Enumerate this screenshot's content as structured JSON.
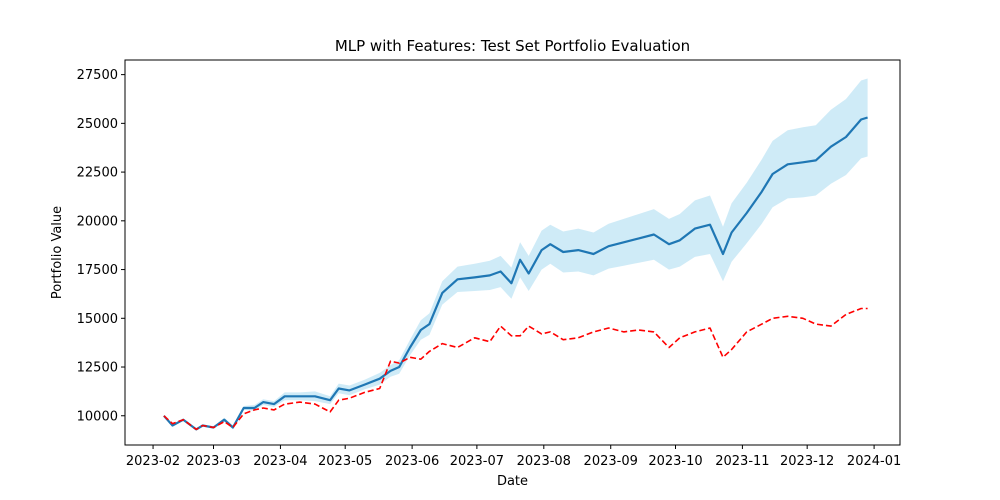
{
  "chart_data": {
    "type": "line",
    "title": "MLP with Features: Test Set Portfolio Evaluation",
    "xlabel": "Date",
    "ylabel": "Portfolio Value",
    "x_ticks": [
      "2023-02",
      "2023-03",
      "2023-04",
      "2023-05",
      "2023-06",
      "2023-07",
      "2023-08",
      "2023-09",
      "2023-10",
      "2023-11",
      "2023-12",
      "2024-01"
    ],
    "x_tick_dates": [
      "2023-02-01",
      "2023-03-01",
      "2023-04-01",
      "2023-05-01",
      "2023-06-01",
      "2023-07-01",
      "2023-08-01",
      "2023-09-01",
      "2023-10-01",
      "2023-11-01",
      "2023-12-01",
      "2024-01-01"
    ],
    "y_ticks": [
      10000,
      12500,
      15000,
      17500,
      20000,
      22500,
      25000,
      27500
    ],
    "y_tick_labels": [
      "10000",
      "12500",
      "15000",
      "17500",
      "20000",
      "22500",
      "25000",
      "27500"
    ],
    "xlim": [
      "2023-01-19",
      "2024-01-13"
    ],
    "ylim": [
      8500,
      28250
    ],
    "grid": false,
    "colors": {
      "model_line": "#1f77b4",
      "band": "#87ceeb",
      "benchmark": "#ff0000"
    },
    "series": [
      {
        "style": "solid",
        "color": "#1f77b4",
        "x": [
          "2023-02-06",
          "2023-02-10",
          "2023-02-15",
          "2023-02-21",
          "2023-02-24",
          "2023-03-01",
          "2023-03-06",
          "2023-03-10",
          "2023-03-15",
          "2023-03-20",
          "2023-03-24",
          "2023-03-29",
          "2023-04-03",
          "2023-04-10",
          "2023-04-17",
          "2023-04-24",
          "2023-04-28",
          "2023-05-03",
          "2023-05-10",
          "2023-05-17",
          "2023-05-22",
          "2023-05-26",
          "2023-05-31",
          "2023-06-05",
          "2023-06-09",
          "2023-06-15",
          "2023-06-22",
          "2023-06-30",
          "2023-07-07",
          "2023-07-12",
          "2023-07-17",
          "2023-07-21",
          "2023-07-25",
          "2023-07-31",
          "2023-08-04",
          "2023-08-10",
          "2023-08-17",
          "2023-08-24",
          "2023-08-31",
          "2023-09-07",
          "2023-09-14",
          "2023-09-21",
          "2023-09-28",
          "2023-10-03",
          "2023-10-10",
          "2023-10-17",
          "2023-10-23",
          "2023-10-27",
          "2023-11-03",
          "2023-11-10",
          "2023-11-15",
          "2023-11-22",
          "2023-11-29",
          "2023-12-05",
          "2023-12-12",
          "2023-12-19",
          "2023-12-26",
          "2023-12-29"
        ],
        "values": [
          10000,
          9500,
          9800,
          9300,
          9500,
          9400,
          9800,
          9400,
          10400,
          10400,
          10700,
          10600,
          11000,
          11000,
          11000,
          10800,
          11400,
          11300,
          11600,
          11900,
          12300,
          12500,
          13500,
          14400,
          14700,
          16300,
          17000,
          17100,
          17200,
          17400,
          16800,
          18000,
          17300,
          18500,
          18800,
          18400,
          18500,
          18300,
          18700,
          18900,
          19100,
          19300,
          18800,
          19000,
          19600,
          19800,
          18300,
          19400,
          20400,
          21500,
          22400,
          22900,
          23000,
          23100,
          23800,
          24300,
          25200,
          25300
        ]
      },
      {
        "style": "dashed",
        "color": "#ff0000",
        "x": [
          "2023-02-06",
          "2023-02-10",
          "2023-02-15",
          "2023-02-21",
          "2023-02-24",
          "2023-03-01",
          "2023-03-06",
          "2023-03-10",
          "2023-03-15",
          "2023-03-20",
          "2023-03-24",
          "2023-03-29",
          "2023-04-03",
          "2023-04-10",
          "2023-04-17",
          "2023-04-24",
          "2023-04-28",
          "2023-05-03",
          "2023-05-10",
          "2023-05-17",
          "2023-05-22",
          "2023-05-26",
          "2023-05-31",
          "2023-06-05",
          "2023-06-09",
          "2023-06-15",
          "2023-06-22",
          "2023-06-30",
          "2023-07-07",
          "2023-07-12",
          "2023-07-17",
          "2023-07-21",
          "2023-07-25",
          "2023-07-31",
          "2023-08-04",
          "2023-08-10",
          "2023-08-17",
          "2023-08-24",
          "2023-08-31",
          "2023-09-07",
          "2023-09-14",
          "2023-09-21",
          "2023-09-28",
          "2023-10-03",
          "2023-10-10",
          "2023-10-17",
          "2023-10-23",
          "2023-10-27",
          "2023-11-03",
          "2023-11-10",
          "2023-11-15",
          "2023-11-22",
          "2023-11-29",
          "2023-12-05",
          "2023-12-12",
          "2023-12-19",
          "2023-12-26",
          "2023-12-29"
        ],
        "values": [
          10000,
          9600,
          9800,
          9300,
          9500,
          9400,
          9700,
          9400,
          10100,
          10300,
          10400,
          10300,
          10600,
          10700,
          10600,
          10200,
          10800,
          10900,
          11200,
          11400,
          12800,
          12700,
          13000,
          12900,
          13300,
          13700,
          13500,
          14000,
          13800,
          14600,
          14100,
          14100,
          14600,
          14200,
          14300,
          13900,
          14000,
          14300,
          14500,
          14300,
          14400,
          14300,
          13500,
          14000,
          14300,
          14500,
          13000,
          13400,
          14300,
          14700,
          15000,
          15100,
          15000,
          14700,
          14600,
          15200,
          15500,
          15500
        ]
      }
    ],
    "confidence_band": {
      "color": "#87ceeb",
      "x": [
        "2023-02-06",
        "2023-02-10",
        "2023-02-15",
        "2023-02-21",
        "2023-02-24",
        "2023-03-01",
        "2023-03-06",
        "2023-03-10",
        "2023-03-15",
        "2023-03-20",
        "2023-03-24",
        "2023-03-29",
        "2023-04-03",
        "2023-04-10",
        "2023-04-17",
        "2023-04-24",
        "2023-04-28",
        "2023-05-03",
        "2023-05-10",
        "2023-05-17",
        "2023-05-22",
        "2023-05-26",
        "2023-05-31",
        "2023-06-05",
        "2023-06-09",
        "2023-06-15",
        "2023-06-22",
        "2023-06-30",
        "2023-07-07",
        "2023-07-12",
        "2023-07-17",
        "2023-07-21",
        "2023-07-25",
        "2023-07-31",
        "2023-08-04",
        "2023-08-10",
        "2023-08-17",
        "2023-08-24",
        "2023-08-31",
        "2023-09-07",
        "2023-09-14",
        "2023-09-21",
        "2023-09-28",
        "2023-10-03",
        "2023-10-10",
        "2023-10-17",
        "2023-10-23",
        "2023-10-27",
        "2023-11-03",
        "2023-11-10",
        "2023-11-15",
        "2023-11-22",
        "2023-11-29",
        "2023-12-05",
        "2023-12-12",
        "2023-12-19",
        "2023-12-26",
        "2023-12-29"
      ],
      "lower": [
        9950,
        9450,
        9750,
        9250,
        9450,
        9350,
        9700,
        9300,
        10300,
        10250,
        10550,
        10450,
        10800,
        10800,
        10750,
        10600,
        11150,
        11050,
        11350,
        11600,
        12000,
        12150,
        13100,
        13900,
        14150,
        15700,
        16350,
        16400,
        16450,
        16600,
        16000,
        17100,
        16400,
        17500,
        17800,
        17350,
        17400,
        17200,
        17550,
        17700,
        17850,
        18000,
        17500,
        17650,
        18150,
        18300,
        16900,
        17900,
        18850,
        19850,
        20700,
        21150,
        21200,
        21300,
        21900,
        22350,
        23200,
        23300
      ],
      "upper": [
        10050,
        9550,
        9850,
        9350,
        9550,
        9450,
        9900,
        9500,
        10500,
        10550,
        10850,
        10750,
        11200,
        11200,
        11250,
        11000,
        11650,
        11550,
        11850,
        12200,
        12600,
        12850,
        13900,
        14900,
        15250,
        16900,
        17650,
        17800,
        17950,
        18200,
        17600,
        18900,
        18200,
        19500,
        19800,
        19450,
        19600,
        19400,
        19850,
        20100,
        20350,
        20600,
        20100,
        20350,
        21050,
        21300,
        19700,
        20900,
        21950,
        23150,
        24100,
        24650,
        24800,
        24900,
        25700,
        26250,
        27200,
        27300
      ]
    }
  }
}
